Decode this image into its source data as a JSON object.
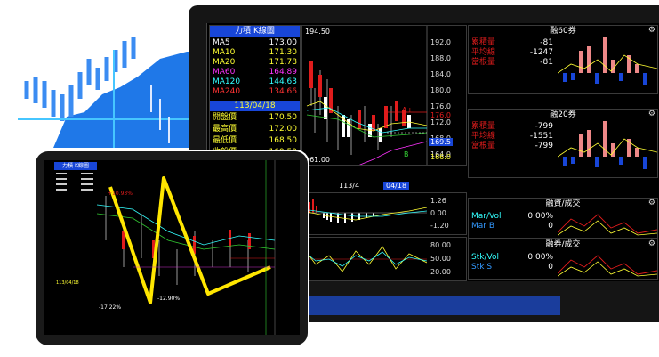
{
  "stock_title": "力積 K線圖",
  "ma_rows": [
    {
      "label": "MA5",
      "value": "173.00",
      "color": "#ffffff"
    },
    {
      "label": "MA10",
      "value": "171.30",
      "color": "#ffff33"
    },
    {
      "label": "MA20",
      "value": "171.78",
      "color": "#ffff33"
    },
    {
      "label": "MA60",
      "value": "164.89",
      "color": "#ff33ff"
    },
    {
      "label": "MA120",
      "value": "144.63",
      "color": "#33ffff"
    },
    {
      "label": "MA240",
      "value": "134.66",
      "color": "#ff3333"
    }
  ],
  "date_label": "113/04/18",
  "price_rows": [
    {
      "label": "開盤價",
      "value": "170.50"
    },
    {
      "label": "最高價",
      "value": "172.00"
    },
    {
      "label": "最低價",
      "value": "168.50"
    },
    {
      "label": "收盤價",
      "value": "169.50"
    }
  ],
  "kline": {
    "top_value": "194.50",
    "low_value": "161.00",
    "x_label_mid": "113/4",
    "x_label_current": "04/18",
    "y_ticks": [
      "192.0",
      "188.0",
      "184.0",
      "180.0",
      "176.0",
      "172.0",
      "168.0",
      "164.0"
    ],
    "marker_a": "A+",
    "marker_b": "B",
    "current_price": "169.5",
    "level_line": "176.0",
    "level_below": "166.0"
  },
  "macd_ticks": [
    "1.26",
    "0.00",
    "-1.20"
  ],
  "kd_ticks": [
    "80.00",
    "50.00",
    "20.00"
  ],
  "inst_panels": [
    {
      "title": "融60券",
      "rows": [
        {
          "label": "累積量",
          "value": "-81"
        },
        {
          "label": "平均線",
          "value": "-1247"
        },
        {
          "label": "當根量",
          "value": "-81"
        }
      ]
    },
    {
      "title": "融20券",
      "rows": [
        {
          "label": "累積量",
          "value": "-799"
        },
        {
          "label": "平均線",
          "value": "-1551"
        },
        {
          "label": "當根量",
          "value": "-799"
        }
      ]
    }
  ],
  "ratio_panels": [
    {
      "title": "融資/成交",
      "rows": [
        {
          "label": "Mar/Vol",
          "value": "0.00%"
        },
        {
          "label": "Mar B",
          "value": "0"
        }
      ]
    },
    {
      "title": "融券/成交",
      "rows": [
        {
          "label": "Stk/Vol",
          "value": "0.00%"
        },
        {
          "label": "Stk S",
          "value": "0"
        }
      ]
    }
  ],
  "tablet": {
    "title": "力積 K線圖",
    "pct_high": "+10.93%",
    "pct_low1": "-17.22%",
    "pct_low2": "-12.90%",
    "date": "113/04/18"
  }
}
